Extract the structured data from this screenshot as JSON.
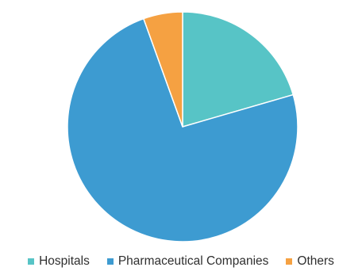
{
  "chart_data": {
    "type": "pie",
    "title": "",
    "series": [
      {
        "name": "Hospitals",
        "value": 20.5,
        "color": "#57c4c6"
      },
      {
        "name": "Pharmaceutical Companies",
        "value": 74.0,
        "color": "#3d9bd1"
      },
      {
        "name": "Others",
        "value": 5.5,
        "color": "#f5a142"
      }
    ],
    "legend": {
      "placement": "bottom",
      "items": [
        "Hospitals",
        "Pharmaceutical Companies",
        "Others"
      ]
    },
    "start_angle": "top",
    "direction": "clockwise"
  }
}
